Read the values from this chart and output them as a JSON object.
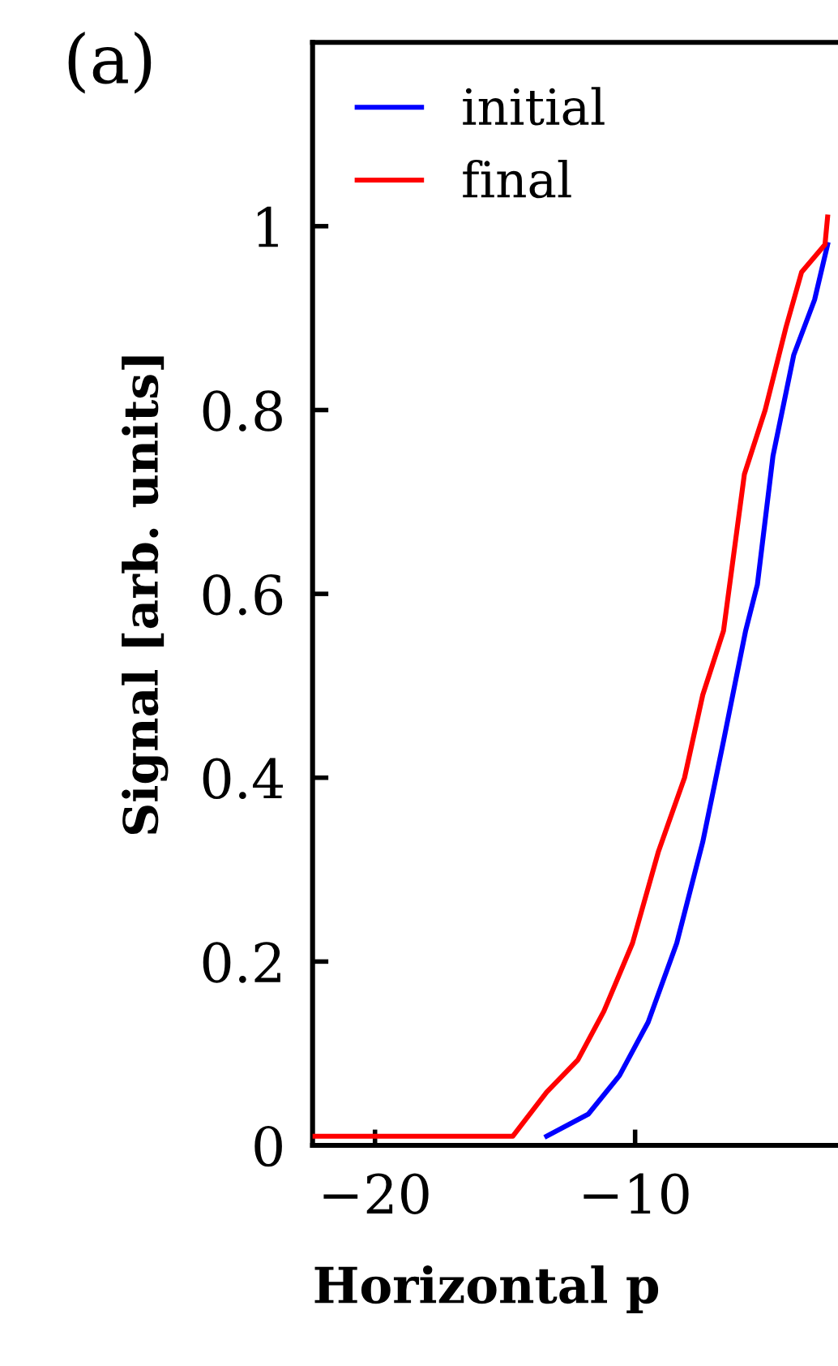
{
  "chart_data": {
    "type": "line",
    "annotations": [
      "(a)"
    ],
    "xlabel": "Horizontal p",
    "ylabel": "Signal [arb. units]",
    "xlim": [
      -22.4,
      -2.2
    ],
    "xticks": [
      {
        "value": -20,
        "label": "−20"
      },
      {
        "value": -10,
        "label": "−10"
      }
    ],
    "ylim": [
      0,
      1.2
    ],
    "yticks": [
      0,
      0.2,
      0.4,
      0.6,
      0.8,
      1
    ],
    "grid": false,
    "legend": "top left",
    "marker": "none",
    "line_style": "solid",
    "series": [
      {
        "name": "initial",
        "color": "#0000ff",
        "x": [
          -13.4,
          -11.8,
          -10.6,
          -9.5,
          -8.4,
          -7.4,
          -6.6,
          -5.75,
          -5.3,
          -4.7,
          -3.9,
          -3.1,
          -2.6
        ],
        "values": [
          0.01,
          0.034,
          0.076,
          0.134,
          0.22,
          0.33,
          0.44,
          0.56,
          0.61,
          0.75,
          0.86,
          0.92,
          0.98
        ]
      },
      {
        "name": "final",
        "color": "#ff0000",
        "x": [
          -22.4,
          -18,
          -16,
          -14.7,
          -13.4,
          -12.2,
          -11.2,
          -10.1,
          -9.1,
          -8.1,
          -7.4,
          -6.6,
          -5.8,
          -5.0,
          -4.2,
          -3.6,
          -2.7,
          -2.6
        ],
        "values": [
          0.01,
          0.01,
          0.01,
          0.01,
          0.058,
          0.093,
          0.146,
          0.22,
          0.32,
          0.4,
          0.49,
          0.56,
          0.73,
          0.8,
          0.89,
          0.95,
          0.98,
          1.01
        ]
      }
    ]
  }
}
